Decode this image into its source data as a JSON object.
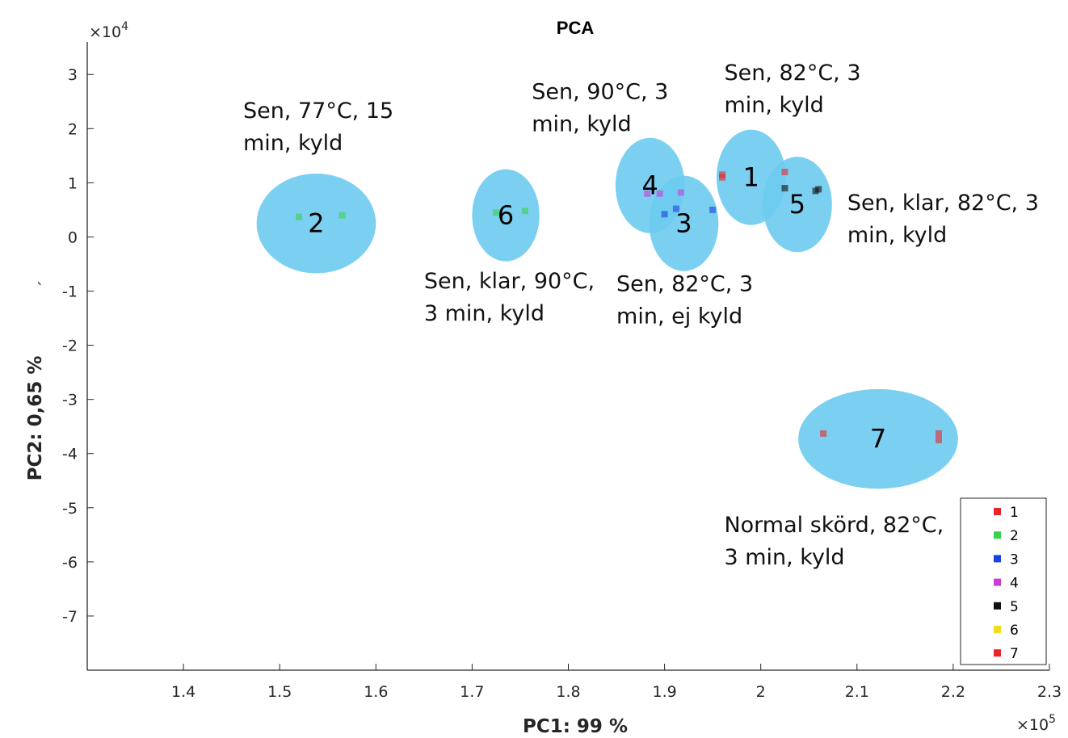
{
  "chart_data": {
    "type": "scatter",
    "title": "PCA",
    "xlabel": "PC1: 99 %",
    "ylabel": "PC2: 0,65 %",
    "y_stray_label": "´",
    "x_multiplier": "×10",
    "x_multiplier_exp": "5",
    "y_multiplier": "×10",
    "y_multiplier_exp": "4",
    "xlim": [
      1.3,
      2.3
    ],
    "ylim": [
      -8,
      3.6
    ],
    "xticks": [
      "1.4",
      "1.5",
      "1.6",
      "1.7",
      "1.8",
      "1.9",
      "2",
      "2.1",
      "2.2",
      "2.3"
    ],
    "xtick_values": [
      1.4,
      1.5,
      1.6,
      1.7,
      1.8,
      1.9,
      2.0,
      2.1,
      2.2,
      2.3
    ],
    "yticks": [
      "3",
      "2",
      "1",
      "0",
      "-1",
      "-2",
      "-3",
      "-4",
      "-5",
      "-6",
      "-7"
    ],
    "ytick_values": [
      3,
      2,
      1,
      0,
      -1,
      -2,
      -3,
      -4,
      -5,
      -6,
      -7
    ],
    "legend_position": "bottom-right",
    "series": [
      {
        "name": "1",
        "color": "#e8262a",
        "points": [
          [
            1.96,
            1.15
          ],
          [
            1.96,
            1.1
          ],
          [
            2.025,
            1.2
          ]
        ]
      },
      {
        "name": "2",
        "color": "#3ad14f",
        "points": [
          [
            1.52,
            0.37
          ],
          [
            1.565,
            0.4
          ],
          [
            1.725,
            0.45
          ],
          [
            1.755,
            0.48
          ]
        ]
      },
      {
        "name": "3",
        "color": "#1c3fe0",
        "points": [
          [
            1.9,
            0.42
          ],
          [
            1.912,
            0.52
          ],
          [
            1.95,
            0.5
          ]
        ]
      },
      {
        "name": "4",
        "color": "#c53fd6",
        "points": [
          [
            1.882,
            0.8
          ],
          [
            1.895,
            0.8
          ],
          [
            1.917,
            0.82
          ]
        ]
      },
      {
        "name": "5",
        "color": "#111111",
        "points": [
          [
            2.025,
            0.9
          ],
          [
            2.057,
            0.85
          ],
          [
            2.06,
            0.88
          ]
        ]
      },
      {
        "name": "6",
        "color": "#f0dc1c",
        "points": []
      },
      {
        "name": "7",
        "color": "#e8262a",
        "points": [
          [
            2.065,
            -3.63
          ],
          [
            2.185,
            -3.63
          ],
          [
            2.185,
            -3.75
          ]
        ]
      }
    ],
    "clusters": [
      {
        "label": "1",
        "cx": 1.99,
        "cy": 1.1,
        "rx": 0.036,
        "ry": 0.88
      },
      {
        "label": "2",
        "cx": 1.538,
        "cy": 0.25,
        "rx": 0.062,
        "ry": 0.92
      },
      {
        "label": "3",
        "cx": 1.92,
        "cy": 0.25,
        "rx": 0.036,
        "ry": 0.88
      },
      {
        "label": "4",
        "cx": 1.885,
        "cy": 0.95,
        "rx": 0.036,
        "ry": 0.88
      },
      {
        "label": "5",
        "cx": 2.038,
        "cy": 0.6,
        "rx": 0.036,
        "ry": 0.88
      },
      {
        "label": "6",
        "cx": 1.735,
        "cy": 0.4,
        "rx": 0.035,
        "ry": 0.85
      },
      {
        "label": "7",
        "cx": 2.122,
        "cy": -3.73,
        "rx": 0.083,
        "ry": 0.92
      }
    ],
    "cluster_color": "#6dcbef",
    "annotations": [
      {
        "lines": [
          "Sen, 77°C, 15",
          "min, kyld"
        ],
        "x": 1.462,
        "y": 2.2
      },
      {
        "lines": [
          "Sen, 90°C, 3",
          "min, kyld"
        ],
        "x": 1.762,
        "y": 2.55
      },
      {
        "lines": [
          "Sen, 82°C, 3",
          "min, kyld"
        ],
        "x": 1.962,
        "y": 2.9
      },
      {
        "lines": [
          "Sen, klar, 82°C, 3",
          "min, kyld"
        ],
        "x": 2.09,
        "y": 0.5
      },
      {
        "lines": [
          "Sen, klar, 90°C,",
          "3 min, kyld"
        ],
        "x": 1.65,
        "y": -0.95
      },
      {
        "lines": [
          "Sen, 82°C, 3",
          "min, ej kyld"
        ],
        "x": 1.85,
        "y": -1.0
      },
      {
        "lines": [
          "Normal skörd, 82°C,",
          "3 min, kyld"
        ],
        "x": 1.962,
        "y": -5.45
      }
    ]
  }
}
